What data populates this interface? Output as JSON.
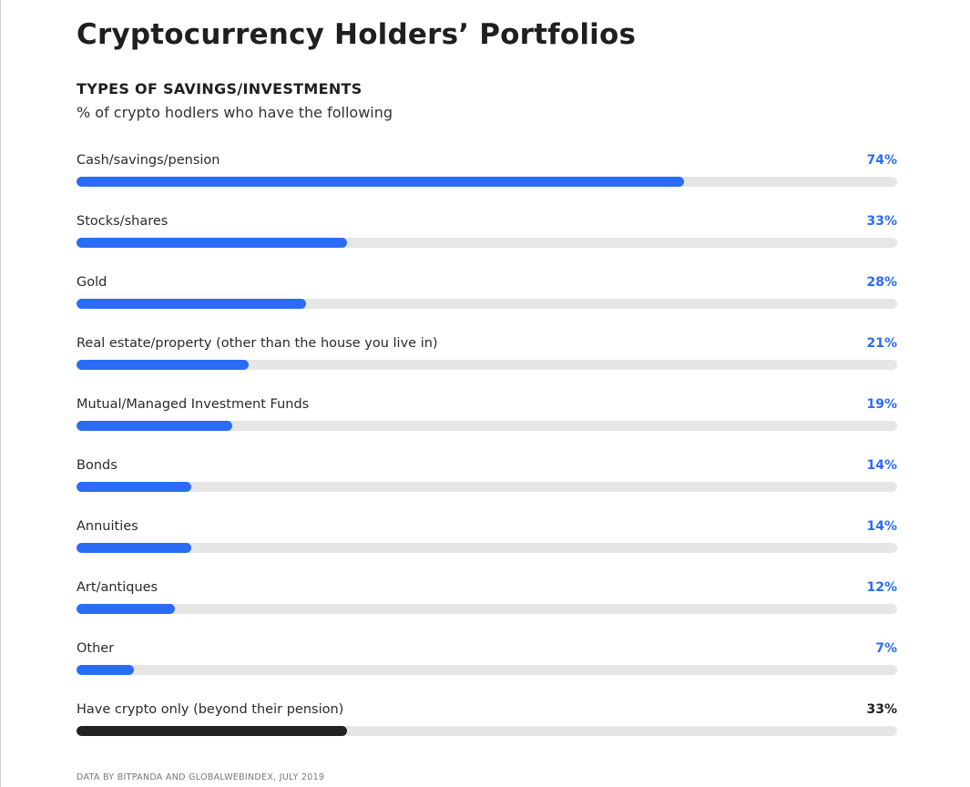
{
  "header": {
    "title": "Cryptocurrency Holders’ Portfolios",
    "subtitle": "TYPES OF SAVINGS/INVESTMENTS",
    "caption": "% of crypto hodlers who have the following"
  },
  "colors": {
    "accent": "#2b6cf6",
    "highlight": "#222222",
    "track": "#e6e6e6"
  },
  "chart_data": {
    "type": "bar",
    "orientation": "horizontal",
    "xlim": [
      0,
      100
    ],
    "grid": false,
    "categories": [
      "Cash/savings/pension",
      "Stocks/shares",
      "Gold",
      "Real estate/property (other than the house you live in)",
      "Mutual/Managed Investment Funds",
      "Bonds",
      "Annuities",
      "Art/antiques",
      "Other",
      "Have crypto only (beyond their pension)"
    ],
    "values": [
      74,
      33,
      28,
      21,
      19,
      14,
      14,
      12,
      7,
      33
    ],
    "value_labels": [
      "74%",
      "33%",
      "28%",
      "21%",
      "19%",
      "14%",
      "14%",
      "12%",
      "7%",
      "33%"
    ],
    "highlighted": [
      false,
      false,
      false,
      false,
      false,
      false,
      false,
      false,
      false,
      true
    ]
  },
  "footer": {
    "source": "DATA BY BITPANDA AND GLOBALWEBINDEX, JULY 2019"
  }
}
